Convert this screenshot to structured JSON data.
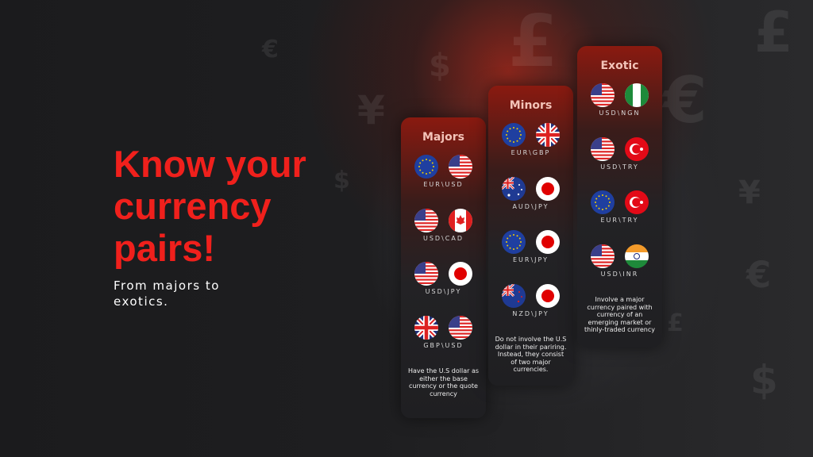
{
  "headline": "Know your currency pairs!",
  "subheadline": "From majors to exotics.",
  "colors": {
    "accent": "#f0201c",
    "background": "#1a1a1c"
  },
  "background_symbols": [
    "€",
    "$",
    "£",
    "¥",
    "€",
    "£",
    "$",
    "¥",
    "€",
    "$",
    "£"
  ],
  "cards": [
    {
      "title": "Majors",
      "pairs": [
        {
          "code": "EUR\\USD",
          "flags": [
            "eu",
            "us"
          ]
        },
        {
          "code": "USD\\CAD",
          "flags": [
            "us",
            "ca"
          ]
        },
        {
          "code": "USD\\JPY",
          "flags": [
            "us",
            "jp"
          ]
        },
        {
          "code": "GBP\\USD",
          "flags": [
            "gb",
            "us"
          ]
        }
      ],
      "description": "Have the U.S dollar as either the base currency or the quote currency"
    },
    {
      "title": "Minors",
      "pairs": [
        {
          "code": "EUR\\GBP",
          "flags": [
            "eu",
            "gb"
          ]
        },
        {
          "code": "AUD\\JPY",
          "flags": [
            "au",
            "jp"
          ]
        },
        {
          "code": "EUR\\JPY",
          "flags": [
            "eu",
            "jp"
          ]
        },
        {
          "code": "NZD\\JPY",
          "flags": [
            "nz",
            "jp"
          ]
        }
      ],
      "description": "Do not involve the U.S dollar in their pariring. Instead, they consist of two major currencies."
    },
    {
      "title": "Exotic",
      "pairs": [
        {
          "code": "USD\\NGN",
          "flags": [
            "us",
            "ng"
          ]
        },
        {
          "code": "USD\\TRY",
          "flags": [
            "us",
            "tr"
          ]
        },
        {
          "code": "EUR\\TRY",
          "flags": [
            "eu",
            "tr"
          ]
        },
        {
          "code": "USD\\INR",
          "flags": [
            "us",
            "in"
          ]
        }
      ],
      "description": "Involve a major currency paired with currency of an emerging market or thinly-traded currency"
    }
  ]
}
